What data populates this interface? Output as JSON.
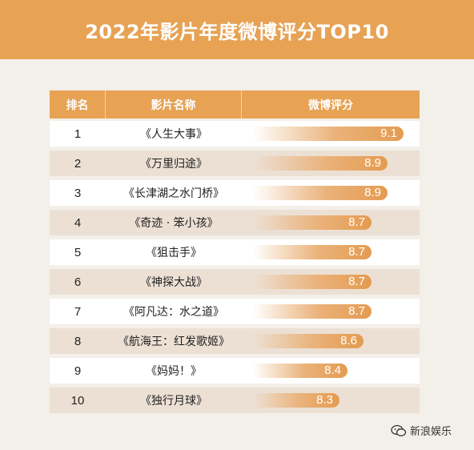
{
  "title": "2022年影片年度微博评分TOP10",
  "columns": [
    "排名",
    "影片名称",
    "微博评分"
  ],
  "rows": [
    {
      "rank": "1",
      "film": "《人生大事》",
      "score_label": "9.1"
    },
    {
      "rank": "2",
      "film": "《万里归途》",
      "score_label": "8.9"
    },
    {
      "rank": "3",
      "film": "《长津湖之水门桥》",
      "score_label": "8.9"
    },
    {
      "rank": "4",
      "film": "《奇迹 · 笨小孩》",
      "score_label": "8.7"
    },
    {
      "rank": "5",
      "film": "《狙击手》",
      "score_label": "8.7"
    },
    {
      "rank": "6",
      "film": "《神探大战》",
      "score_label": "8.7"
    },
    {
      "rank": "7",
      "film": "《阿凡达：水之道》",
      "score_label": "8.7"
    },
    {
      "rank": "8",
      "film": "《航海王：红发歌姬》",
      "score_label": "8.6"
    },
    {
      "rank": "9",
      "film": "《妈妈！》",
      "score_label": "8.4"
    },
    {
      "rank": "10",
      "film": "《独行月球》",
      "score_label": "8.3"
    }
  ],
  "chart_data": {
    "type": "bar",
    "title": "2022年影片年度微博评分TOP10",
    "categories": [
      "《人生大事》",
      "《万里归途》",
      "《长津湖之水门桥》",
      "《奇迹 · 笨小孩》",
      "《狙击手》",
      "《神探大战》",
      "《阿凡达：水之道》",
      "《航海王：红发歌姬》",
      "《妈妈！》",
      "《独行月球》"
    ],
    "values": [
      9.1,
      8.9,
      8.9,
      8.7,
      8.7,
      8.7,
      8.7,
      8.6,
      8.4,
      8.3
    ],
    "orientation": "horizontal"
  },
  "watermark": "新浪娱乐",
  "colors": {
    "accent": "#e7a254",
    "row_alt": "#ece0d4",
    "background": "#f3efe9"
  },
  "icons": {
    "watermark": "wechat-chat-icon"
  }
}
